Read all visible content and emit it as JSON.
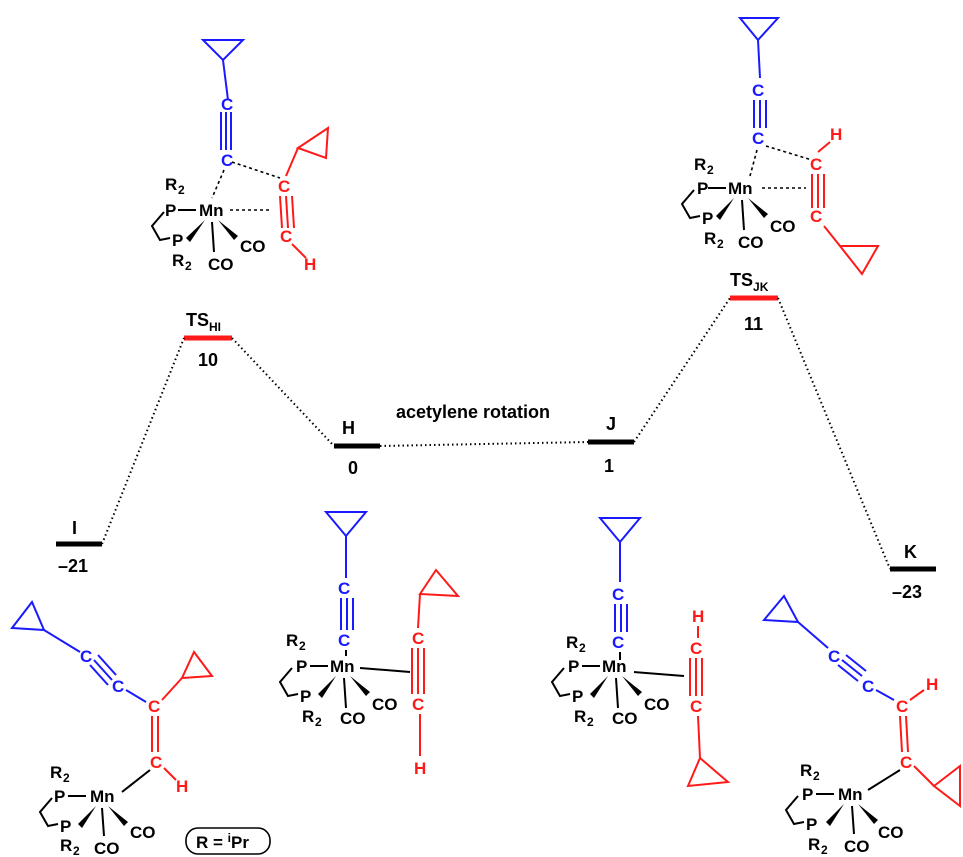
{
  "states": {
    "I": {
      "label": "I",
      "energy": "–21"
    },
    "TS_HI": {
      "label": "TS",
      "sub": "HI",
      "energy": "10"
    },
    "H": {
      "label": "H",
      "energy": "0"
    },
    "J": {
      "label": "J",
      "energy": "1"
    },
    "TS_JK": {
      "label": "TS",
      "sub": "JK",
      "energy": "11"
    },
    "K": {
      "label": "K",
      "energy": "–23"
    }
  },
  "annotation": "acetylene rotation",
  "legend_note": {
    "prefix": "R = ",
    "sup": "i",
    "suffix": "Pr"
  },
  "atoms": {
    "Mn": "Mn",
    "P": "P",
    "R": "R",
    "two": "2",
    "CO": "CO",
    "C": "C",
    "H": "H"
  },
  "colors": {
    "blue": "#1a1aff",
    "red": "#ff1a1a",
    "black": "#000000"
  }
}
